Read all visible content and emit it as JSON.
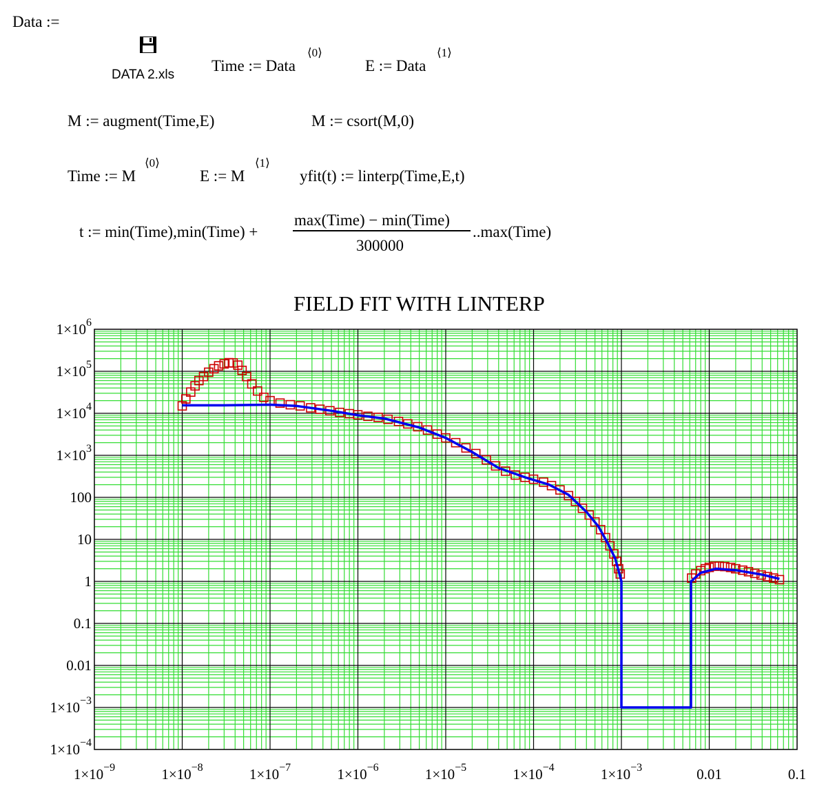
{
  "worksheet": {
    "data_def": "Data :=",
    "file_icon": "floppy-disk-icon",
    "file_name": "DATA 2.xls",
    "time_def": "Time := Data",
    "time_sup": "⟨0⟩",
    "e_def": "E := Data",
    "e_sup": "⟨1⟩",
    "m_augment": "M := augment(Time,E)",
    "m_csort": "M := csort(M,0)",
    "time_from_m": "Time := M",
    "time_from_m_sup": "⟨0⟩",
    "e_from_m": "E := M",
    "e_from_m_sup": "⟨1⟩",
    "yfit_def": "yfit(t) := linterp(Time,E,t)",
    "t_range_lhs": "t := min(Time),min(Time) +",
    "t_range_num": "max(Time) − min(Time)",
    "t_range_den": "300000",
    "t_range_rhs": "..max(Time)"
  },
  "chart_data": {
    "type": "line",
    "title": "FIELD FIT WITH LINTERP",
    "xlabel": "",
    "ylabel": "",
    "x_scale": "log",
    "y_scale": "log",
    "xlim": [
      1e-09,
      0.1
    ],
    "ylim": [
      0.0001,
      1000000.0
    ],
    "grid": true,
    "colors": {
      "minor_grid": "#33dd33",
      "major_grid": "#000000",
      "markers": "#cc0000",
      "fit_line": "#0000ee"
    },
    "x_ticks": [
      {
        "mant": "1×10",
        "exp": "−9"
      },
      {
        "mant": "1×10",
        "exp": "−8"
      },
      {
        "mant": "1×10",
        "exp": "−7"
      },
      {
        "mant": "1×10",
        "exp": "−6"
      },
      {
        "mant": "1×10",
        "exp": "−5"
      },
      {
        "mant": "1×10",
        "exp": "−4"
      },
      {
        "mant": "1×10",
        "exp": "−3"
      },
      {
        "mant": "0.01",
        "exp": ""
      },
      {
        "mant": "0.1",
        "exp": ""
      }
    ],
    "y_ticks": [
      {
        "mant": "1×10",
        "exp": "6"
      },
      {
        "mant": "1×10",
        "exp": "5"
      },
      {
        "mant": "1×10",
        "exp": "4"
      },
      {
        "mant": "1×10",
        "exp": "3"
      },
      {
        "mant": "100",
        "exp": ""
      },
      {
        "mant": "10",
        "exp": ""
      },
      {
        "mant": "1",
        "exp": ""
      },
      {
        "mant": "0.1",
        "exp": ""
      },
      {
        "mant": "0.01",
        "exp": ""
      },
      {
        "mant": "1×10",
        "exp": "−3"
      },
      {
        "mant": "1×10",
        "exp": "−4"
      }
    ],
    "series": [
      {
        "style": "markers",
        "points": [
          [
            1e-08,
            15000.0
          ],
          [
            1.1e-08,
            22000.0
          ],
          [
            1.25e-08,
            32000.0
          ],
          [
            1.4e-08,
            45000.0
          ],
          [
            1.55e-08,
            60000.0
          ],
          [
            1.75e-08,
            75000.0
          ],
          [
            2e-08,
            95000.0
          ],
          [
            2.3e-08,
            115000.0
          ],
          [
            2.6e-08,
            135000.0
          ],
          [
            3e-08,
            150000.0
          ],
          [
            3.4e-08,
            160000.0
          ],
          [
            3.8e-08,
            158000.0
          ],
          [
            4.3e-08,
            140000.0
          ],
          [
            4.8e-08,
            105000.0
          ],
          [
            5.4e-08,
            75000.0
          ],
          [
            6.2e-08,
            50000.0
          ],
          [
            7.2e-08,
            34000.0
          ],
          [
            8.5e-08,
            24000.0
          ],
          [
            1e-07,
            20000.0
          ],
          [
            1.3e-07,
            17500.0
          ],
          [
            1.7e-07,
            16000.0
          ],
          [
            2.2e-07,
            15000.0
          ],
          [
            2.9e-07,
            13500.0
          ],
          [
            3.7e-07,
            12500.0
          ],
          [
            4.8e-07,
            11500.0
          ],
          [
            6.2e-07,
            10500.0
          ],
          [
            8e-07,
            9800.0
          ],
          [
            1e-06,
            9200.0
          ],
          [
            1.3e-06,
            8500.0
          ],
          [
            1.7e-06,
            8000.0
          ],
          [
            2.2e-06,
            7200.0
          ],
          [
            2.9e-06,
            6400.0
          ],
          [
            3.7e-06,
            5600.0
          ],
          [
            4.8e-06,
            4800.0
          ],
          [
            6.2e-06,
            4000.0
          ],
          [
            8e-06,
            3200.0
          ],
          [
            1e-05,
            2600.0
          ],
          [
            1.3e-05,
            2000.0
          ],
          [
            1.7e-05,
            1500.0
          ],
          [
            2.2e-05,
            1100.0
          ],
          [
            2.9e-05,
            780
          ],
          [
            3.7e-05,
            560
          ],
          [
            4.8e-05,
            420
          ],
          [
            6.2e-05,
            340
          ],
          [
            8e-05,
            300
          ],
          [
            0.0001,
            270
          ],
          [
            0.00013,
            230
          ],
          [
            0.00016,
            190
          ],
          [
            0.0002,
            150
          ],
          [
            0.00025,
            110
          ],
          [
            0.0003,
            80
          ],
          [
            0.00036,
            55
          ],
          [
            0.00043,
            38
          ],
          [
            0.0005,
            26
          ],
          [
            0.00058,
            17
          ],
          [
            0.00066,
            11
          ],
          [
            0.00074,
            7
          ],
          [
            0.00082,
            4.5
          ],
          [
            0.00088,
            3
          ],
          [
            0.00093,
            2
          ],
          [
            0.00097,
            1.5
          ],
          [
            0.0063,
            1.2
          ],
          [
            0.007,
            1.5
          ],
          [
            0.008,
            1.8
          ],
          [
            0.009,
            2.0
          ],
          [
            0.01,
            2.15
          ],
          [
            0.0115,
            2.3
          ],
          [
            0.013,
            2.3
          ],
          [
            0.015,
            2.25
          ],
          [
            0.0175,
            2.15
          ],
          [
            0.02,
            2.0
          ],
          [
            0.024,
            1.85
          ],
          [
            0.028,
            1.7
          ],
          [
            0.033,
            1.55
          ],
          [
            0.039,
            1.42
          ],
          [
            0.046,
            1.3
          ],
          [
            0.054,
            1.2
          ],
          [
            0.063,
            1.1
          ]
        ]
      },
      {
        "style": "line",
        "points": [
          [
            1e-08,
            15500.0
          ],
          [
            3e-08,
            15500.0
          ],
          [
            1e-07,
            16000.0
          ],
          [
            2e-07,
            15000.0
          ],
          [
            5e-07,
            11500.0
          ],
          [
            1e-06,
            9000.0
          ],
          [
            2e-06,
            7500.0
          ],
          [
            5e-06,
            4600.0
          ],
          [
            1e-05,
            2600.0
          ],
          [
            2e-05,
            1200.0
          ],
          [
            4e-05,
            500
          ],
          [
            8e-05,
            300
          ],
          [
            0.00015,
            200
          ],
          [
            0.00025,
            115
          ],
          [
            0.0004,
            45
          ],
          [
            0.00055,
            20
          ],
          [
            0.0007,
            8
          ],
          [
            0.00085,
            3.5
          ],
          [
            0.00095,
            1.5
          ],
          [
            0.001,
            1.0
          ],
          [
            0.001,
            0.001
          ],
          [
            0.0062,
            0.001
          ],
          [
            0.0062,
            1.0
          ],
          [
            0.008,
            1.6
          ],
          [
            0.012,
            2.0
          ],
          [
            0.02,
            1.85
          ],
          [
            0.04,
            1.45
          ],
          [
            0.063,
            1.15
          ]
        ]
      }
    ]
  }
}
